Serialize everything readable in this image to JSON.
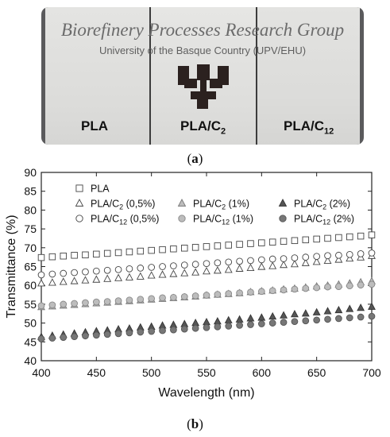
{
  "photo": {
    "background_title": "Biorefinery Processes Research Group",
    "background_subtitle": "University of the Basque Country (UPV/EHU)",
    "films": [
      {
        "label": "PLA",
        "sub": ""
      },
      {
        "label": "PLA/C",
        "sub": "2"
      },
      {
        "label": "PLA/C",
        "sub": "12"
      }
    ],
    "logo": "university-logo"
  },
  "captions": {
    "a_open": "(",
    "a_letter": "a",
    "a_close": ")",
    "b_open": "(",
    "b_letter": "b",
    "b_close": ")"
  },
  "chart_data": {
    "type": "scatter",
    "xlabel": "Wavelength (nm)",
    "ylabel": "Transmittance (%)",
    "xlim": [
      400,
      700
    ],
    "ylim": [
      40,
      90
    ],
    "xticks": [
      400,
      450,
      500,
      550,
      600,
      650,
      700
    ],
    "yticks": [
      40,
      45,
      50,
      55,
      60,
      65,
      70,
      75,
      80,
      85,
      90
    ],
    "grid": false,
    "legend_position": "top",
    "x": [
      400,
      410,
      420,
      430,
      440,
      450,
      460,
      470,
      480,
      490,
      500,
      510,
      520,
      530,
      540,
      550,
      560,
      570,
      580,
      590,
      600,
      610,
      620,
      630,
      640,
      650,
      660,
      670,
      680,
      690,
      700
    ],
    "series": [
      {
        "name": "PLA",
        "name_sub": "",
        "name_suffix": "",
        "marker": "square",
        "fill": "none",
        "stroke": "#444444",
        "values": [
          67.4,
          67.6,
          67.8,
          68.0,
          68.1,
          68.3,
          68.5,
          68.7,
          68.9,
          69.1,
          69.3,
          69.5,
          69.7,
          69.9,
          70.1,
          70.3,
          70.5,
          70.7,
          70.9,
          71.1,
          71.3,
          71.5,
          71.7,
          71.9,
          72.1,
          72.3,
          72.5,
          72.7,
          72.9,
          73.1,
          73.4
        ]
      },
      {
        "name": "PLA/C",
        "name_sub": "2",
        "name_suffix": " (0,5%)",
        "marker": "triangle",
        "fill": "none",
        "stroke": "#444444",
        "values": [
          60.5,
          60.7,
          60.9,
          61.1,
          61.3,
          61.5,
          61.7,
          61.9,
          62.1,
          62.3,
          62.6,
          62.8,
          63.0,
          63.2,
          63.4,
          63.7,
          63.9,
          64.1,
          64.4,
          64.6,
          64.9,
          65.1,
          65.4,
          65.6,
          65.9,
          66.2,
          66.5,
          66.8,
          67.1,
          67.4,
          67.8
        ]
      },
      {
        "name": "PLA/C",
        "name_sub": "2",
        "name_suffix": " (1%)",
        "marker": "triangle",
        "fill": "#bdbdbd",
        "stroke": "#777777",
        "values": [
          54.2,
          54.4,
          54.6,
          54.8,
          55.0,
          55.2,
          55.4,
          55.6,
          55.8,
          56.0,
          56.2,
          56.4,
          56.6,
          56.8,
          57.0,
          57.3,
          57.5,
          57.7,
          57.9,
          58.2,
          58.4,
          58.6,
          58.9,
          59.1,
          59.4,
          59.7,
          59.9,
          60.2,
          60.5,
          60.8,
          61.1
        ]
      },
      {
        "name": "PLA/C",
        "name_sub": "2",
        "name_suffix": " (2%)",
        "marker": "triangle",
        "fill": "#555555",
        "stroke": "#333333",
        "values": [
          46.3,
          46.6,
          46.9,
          47.2,
          47.5,
          47.8,
          48.0,
          48.3,
          48.5,
          48.8,
          49.0,
          49.3,
          49.5,
          49.7,
          50.0,
          50.2,
          50.4,
          50.7,
          50.9,
          51.2,
          51.4,
          51.7,
          52.0,
          52.3,
          52.5,
          52.8,
          53.1,
          53.4,
          53.7,
          54.0,
          54.3
        ]
      },
      {
        "name": "PLA/C",
        "name_sub": "12",
        "name_suffix": " (0,5%)",
        "marker": "circle",
        "fill": "none",
        "stroke": "#444444",
        "values": [
          62.8,
          63.0,
          63.2,
          63.4,
          63.6,
          63.8,
          64.0,
          64.2,
          64.4,
          64.6,
          64.8,
          65.0,
          65.2,
          65.4,
          65.6,
          65.8,
          66.0,
          66.2,
          66.4,
          66.6,
          66.8,
          67.0,
          67.1,
          67.3,
          67.5,
          67.7,
          67.9,
          68.0,
          68.2,
          68.4,
          68.6
        ]
      },
      {
        "name": "PLA/C",
        "name_sub": "12",
        "name_suffix": " (1%)",
        "marker": "circle",
        "fill": "#bdbdbd",
        "stroke": "#888888",
        "values": [
          54.6,
          54.8,
          55.0,
          55.2,
          55.4,
          55.6,
          55.7,
          55.9,
          56.1,
          56.3,
          56.5,
          56.7,
          56.8,
          57.0,
          57.2,
          57.4,
          57.6,
          57.8,
          58.0,
          58.2,
          58.4,
          58.6,
          58.8,
          59.0,
          59.2,
          59.4,
          59.6,
          59.7,
          59.9,
          60.1,
          60.3
        ]
      },
      {
        "name": "PLA/C",
        "name_sub": "12",
        "name_suffix": " (2%)",
        "marker": "circle",
        "fill": "#777777",
        "stroke": "#555555",
        "values": [
          45.8,
          46.0,
          46.2,
          46.4,
          46.6,
          46.8,
          47.0,
          47.2,
          47.4,
          47.6,
          47.8,
          48.0,
          48.2,
          48.4,
          48.6,
          48.8,
          49.0,
          49.2,
          49.4,
          49.6,
          49.8,
          50.0,
          50.2,
          50.4,
          50.6,
          50.8,
          51.0,
          51.2,
          51.4,
          51.6,
          51.8
        ]
      }
    ]
  }
}
